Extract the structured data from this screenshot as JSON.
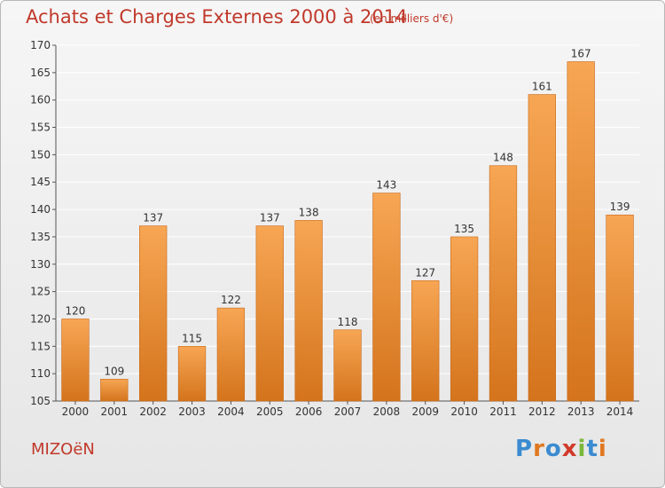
{
  "header": {
    "title": "Achats et Charges Externes 2000 à 2014",
    "subtitle": "(en milliers d'€)"
  },
  "footer": {
    "place": "MIZOëN",
    "logo_text": "Proxiti",
    "logo_letters": [
      {
        "ch": "P",
        "color": "#3b8bd0"
      },
      {
        "ch": "r",
        "color": "#e07820"
      },
      {
        "ch": "o",
        "color": "#3b8bd0"
      },
      {
        "ch": "x",
        "color": "#d23a2a"
      },
      {
        "ch": "i",
        "color": "#7ab839"
      },
      {
        "ch": "t",
        "color": "#3b8bd0"
      },
      {
        "ch": "i",
        "color": "#e07820"
      }
    ]
  },
  "colors": {
    "bar_top": "#f7a654",
    "bar_bottom": "#d4741c",
    "bar_edge": "#c8691a",
    "grid": "#ffffff",
    "title": "#c0392b"
  },
  "chart_data": {
    "type": "bar",
    "title": "Achats et Charges Externes 2000 à 2014",
    "subtitle": "(en milliers d'€)",
    "categories": [
      "2000",
      "2001",
      "2002",
      "2003",
      "2004",
      "2005",
      "2006",
      "2007",
      "2008",
      "2009",
      "2010",
      "2011",
      "2012",
      "2013",
      "2014"
    ],
    "values": [
      120,
      109,
      137,
      115,
      122,
      137,
      138,
      118,
      143,
      127,
      135,
      148,
      161,
      167,
      139
    ],
    "ylim": [
      105,
      170
    ],
    "yticks": [
      105,
      110,
      115,
      120,
      125,
      130,
      135,
      140,
      145,
      150,
      155,
      160,
      165,
      170
    ],
    "grid": true,
    "data_labels": true,
    "xlabel": "",
    "ylabel": ""
  }
}
